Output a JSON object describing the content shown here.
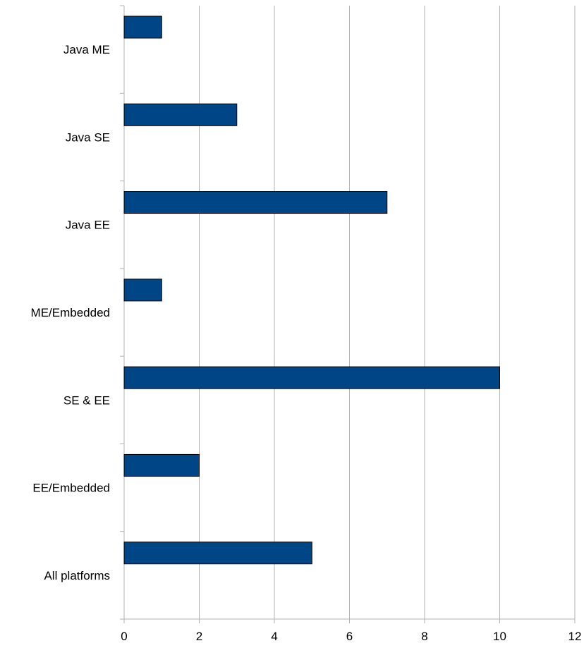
{
  "chart_data": {
    "type": "bar",
    "orientation": "horizontal",
    "categories": [
      "Java ME",
      "Java SE",
      "Java EE",
      "ME/Embedded",
      "SE & EE",
      "EE/Embedded",
      "All platforms"
    ],
    "values": [
      1,
      3,
      7,
      1,
      10,
      2,
      5
    ],
    "title": "",
    "xlabel": "",
    "ylabel": "",
    "xlim": [
      0,
      12
    ],
    "xticks": [
      "0",
      "2",
      "4",
      "6",
      "8",
      "10",
      "12"
    ],
    "grid": true,
    "legend": "none",
    "colors": {
      "bar_fill": "#004586",
      "bar_stroke": "#000000",
      "grid": "#b3b3b3",
      "axis": "#b3b3b3"
    }
  }
}
